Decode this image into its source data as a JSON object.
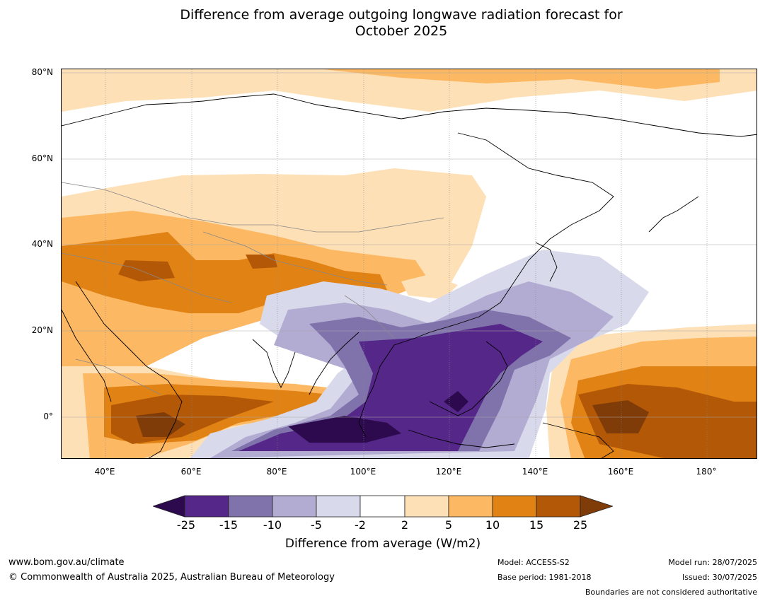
{
  "title_line1": "Difference from average outgoing longwave radiation forecast for",
  "title_line2": "October 2025",
  "lat_labels": [
    "80°N",
    "60°N",
    "40°N",
    "20°N",
    "0°"
  ],
  "lon_labels": [
    "40°E",
    "60°E",
    "80°E",
    "100°E",
    "120°E",
    "140°E",
    "160°E",
    "180°"
  ],
  "colorbar": {
    "ticks": [
      "-25",
      "-15",
      "-10",
      "-5",
      "-2",
      "2",
      "5",
      "10",
      "15",
      "25"
    ],
    "colors": [
      "#2d0a4e",
      "#542788",
      "#8073ac",
      "#b2abd2",
      "#d8daeb",
      "#ffffff",
      "#fee0b6",
      "#fdb863",
      "#e08214",
      "#b35806",
      "#7f3b08"
    ],
    "label": "Difference from average (W/m2)"
  },
  "footer": {
    "website": "www.bom.gov.au/climate",
    "copyright": "© Commonwealth of Australia 2025, Australian Bureau of Meteorology",
    "model": "Model: ACCESS-S2",
    "base_period": "Base period: 1981-2018",
    "model_run": "Model run: 28/07/2025",
    "issued": "Issued: 30/07/2025",
    "disclaimer": "Boundaries are not considered authoritative"
  }
}
